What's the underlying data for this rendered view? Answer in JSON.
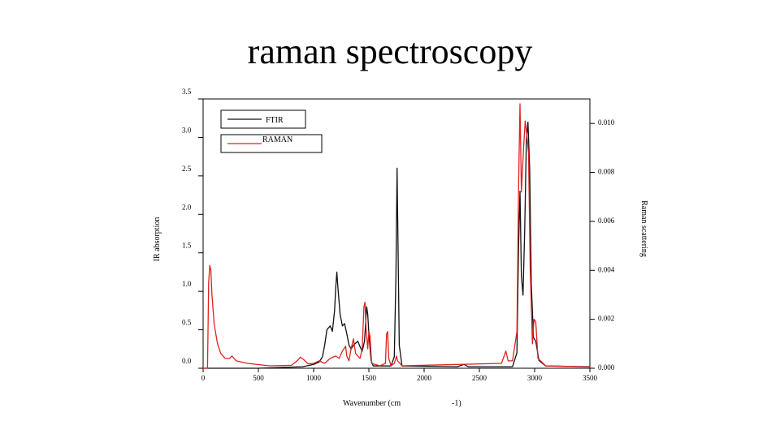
{
  "slide": {
    "title": "raman spectroscopy"
  },
  "colors": {
    "ftir": "#111111",
    "raman": "#e02020",
    "axis": "#000000",
    "background": "#ffffff"
  },
  "chart_data": {
    "type": "line",
    "title": "",
    "xlabel": "Wavenumber (cm",
    "xlabel_suffix": "-1)",
    "ylabel_left": "IR absorption",
    "ylabel_right": "Raman scattering",
    "xlim": [
      0,
      3500
    ],
    "ylim_left": [
      0,
      3.5
    ],
    "ylim_right": [
      0,
      0.011
    ],
    "x_ticks": [
      0,
      500,
      1000,
      1500,
      2000,
      2500,
      3000,
      3500
    ],
    "x_tick_labels": [
      "0",
      "500",
      "1000",
      "1500",
      "2000",
      "2500",
      "3000",
      "3500"
    ],
    "y_left_ticks": [
      0.0,
      0.5,
      1.0,
      1.5,
      2.0,
      2.5,
      3.0,
      3.5
    ],
    "y_left_tick_labels": [
      "0.0",
      "0.5",
      "1.0",
      "1.5",
      "2.0",
      "2.5",
      "3.0",
      "3.5"
    ],
    "y_right_ticks": [
      0.0,
      0.002,
      0.004,
      0.006,
      0.008,
      0.01
    ],
    "y_right_tick_labels": [
      "0.000",
      "0.002",
      "0.004",
      "0.006",
      "0.008",
      "0.010"
    ],
    "legend": {
      "position": "top-left",
      "entries": [
        "FTIR",
        "RAMAN"
      ]
    },
    "grid": false,
    "series": [
      {
        "name": "FTIR",
        "axis": "left",
        "points": [
          [
            0,
            0.0
          ],
          [
            500,
            0.0
          ],
          [
            900,
            0.02
          ],
          [
            1000,
            0.05
          ],
          [
            1050,
            0.08
          ],
          [
            1080,
            0.15
          ],
          [
            1100,
            0.3
          ],
          [
            1120,
            0.5
          ],
          [
            1150,
            0.55
          ],
          [
            1170,
            0.48
          ],
          [
            1190,
            0.75
          ],
          [
            1200,
            1.05
          ],
          [
            1210,
            1.25
          ],
          [
            1220,
            1.05
          ],
          [
            1240,
            0.7
          ],
          [
            1260,
            0.55
          ],
          [
            1280,
            0.58
          ],
          [
            1300,
            0.45
          ],
          [
            1320,
            0.3
          ],
          [
            1340,
            0.25
          ],
          [
            1360,
            0.3
          ],
          [
            1400,
            0.35
          ],
          [
            1420,
            0.28
          ],
          [
            1440,
            0.22
          ],
          [
            1460,
            0.35
          ],
          [
            1480,
            0.8
          ],
          [
            1490,
            0.7
          ],
          [
            1500,
            0.45
          ],
          [
            1520,
            0.1
          ],
          [
            1540,
            0.03
          ],
          [
            1700,
            0.03
          ],
          [
            1730,
            0.15
          ],
          [
            1745,
            1.2
          ],
          [
            1755,
            2.6
          ],
          [
            1765,
            1.5
          ],
          [
            1775,
            0.3
          ],
          [
            1800,
            0.03
          ],
          [
            2300,
            0.02
          ],
          [
            2360,
            0.05
          ],
          [
            2400,
            0.02
          ],
          [
            2800,
            0.02
          ],
          [
            2840,
            0.2
          ],
          [
            2855,
            1.6
          ],
          [
            2868,
            2.3
          ],
          [
            2880,
            1.2
          ],
          [
            2895,
            0.95
          ],
          [
            2910,
            1.8
          ],
          [
            2925,
            2.95
          ],
          [
            2940,
            3.2
          ],
          [
            2955,
            2.6
          ],
          [
            2970,
            1.1
          ],
          [
            2990,
            0.4
          ],
          [
            3010,
            0.35
          ],
          [
            3040,
            0.1
          ],
          [
            3100,
            0.03
          ],
          [
            3500,
            0.02
          ]
        ]
      },
      {
        "name": "RAMAN",
        "axis": "right",
        "points": [
          [
            0,
            0.0
          ],
          [
            40,
            0.0
          ],
          [
            50,
            0.0035
          ],
          [
            60,
            0.0042
          ],
          [
            70,
            0.004
          ],
          [
            80,
            0.003
          ],
          [
            100,
            0.0018
          ],
          [
            130,
            0.001
          ],
          [
            160,
            0.0006
          ],
          [
            200,
            0.0004
          ],
          [
            240,
            0.0004
          ],
          [
            260,
            0.0005
          ],
          [
            300,
            0.0003
          ],
          [
            400,
            0.0002
          ],
          [
            600,
            0.0001
          ],
          [
            800,
            0.00012
          ],
          [
            850,
            0.0003
          ],
          [
            880,
            0.00045
          ],
          [
            910,
            0.00035
          ],
          [
            950,
            0.00018
          ],
          [
            1000,
            0.0002
          ],
          [
            1050,
            0.0003
          ],
          [
            1100,
            0.0002
          ],
          [
            1150,
            0.0004
          ],
          [
            1200,
            0.0005
          ],
          [
            1230,
            0.0004
          ],
          [
            1260,
            0.0007
          ],
          [
            1290,
            0.0009
          ],
          [
            1300,
            0.0005
          ],
          [
            1320,
            0.0003
          ],
          [
            1340,
            0.0008
          ],
          [
            1360,
            0.0012
          ],
          [
            1380,
            0.0006
          ],
          [
            1420,
            0.0004
          ],
          [
            1440,
            0.0008
          ],
          [
            1455,
            0.0025
          ],
          [
            1465,
            0.0027
          ],
          [
            1475,
            0.0016
          ],
          [
            1490,
            0.0008
          ],
          [
            1500,
            0.0015
          ],
          [
            1510,
            0.0013
          ],
          [
            1525,
            0.0002
          ],
          [
            1600,
            0.0001
          ],
          [
            1650,
            0.0002
          ],
          [
            1660,
            0.0014
          ],
          [
            1670,
            0.0015
          ],
          [
            1680,
            0.0004
          ],
          [
            1700,
            0.0001
          ],
          [
            1730,
            0.0002
          ],
          [
            1750,
            0.0005
          ],
          [
            1760,
            0.0003
          ],
          [
            1800,
            0.0001
          ],
          [
            2700,
            0.0002
          ],
          [
            2740,
            0.0007
          ],
          [
            2760,
            0.0003
          ],
          [
            2800,
            0.0003
          ],
          [
            2840,
            0.0015
          ],
          [
            2855,
            0.0075
          ],
          [
            2868,
            0.0108
          ],
          [
            2880,
            0.0072
          ],
          [
            2900,
            0.009
          ],
          [
            2915,
            0.0101
          ],
          [
            2930,
            0.0095
          ],
          [
            2945,
            0.0088
          ],
          [
            2960,
            0.004
          ],
          [
            2980,
            0.001
          ],
          [
            2995,
            0.002
          ],
          [
            3010,
            0.0019
          ],
          [
            3030,
            0.0004
          ],
          [
            3100,
            0.0001
          ],
          [
            3500,
            5e-05
          ]
        ]
      }
    ]
  }
}
